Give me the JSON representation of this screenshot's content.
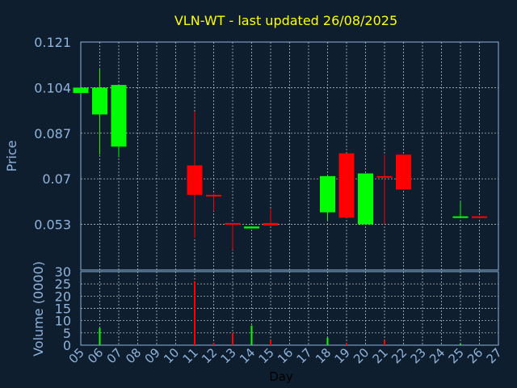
{
  "chart_data": {
    "type": "candlestick",
    "title": "VLN-WT - last updated 26/08/2025",
    "xlabel": "Day",
    "ylabel": "Price",
    "volume_label": "Volume (0000)",
    "x_ticks": [
      "05",
      "06",
      "07",
      "08",
      "09",
      "10",
      "11",
      "12",
      "13",
      "14",
      "15",
      "16",
      "17",
      "18",
      "19",
      "20",
      "21",
      "22",
      "23",
      "24",
      "25",
      "26",
      "27"
    ],
    "price_ticks": [
      "0.121",
      "0.104",
      "0.087",
      "0.07",
      "0.053"
    ],
    "price_range": [
      0.036,
      0.121
    ],
    "volume_ticks": [
      "30",
      "25",
      "20",
      "15",
      "10",
      "5",
      "0"
    ],
    "volume_range": [
      0,
      30
    ],
    "grid": true,
    "colors": {
      "background": "#0f1e2e",
      "up": "#00ff00",
      "down": "#ff0000",
      "title": "#ffff00",
      "axis_text": "#8fb4dc",
      "frame": "#8fb4dc",
      "grid": "#d0d0d0"
    },
    "candles": [
      {
        "day": "05",
        "open": 0.102,
        "close": 0.104,
        "high": 0.104,
        "low": 0.102
      },
      {
        "day": "06",
        "open": 0.094,
        "close": 0.104,
        "high": 0.111,
        "low": 0.079
      },
      {
        "day": "07",
        "open": 0.082,
        "close": 0.105,
        "high": 0.105,
        "low": 0.078
      },
      {
        "day": "11",
        "open": 0.075,
        "close": 0.064,
        "high": 0.095,
        "low": 0.048
      },
      {
        "day": "12",
        "open": 0.064,
        "close": 0.0635,
        "high": 0.0645,
        "low": 0.058
      },
      {
        "day": "13",
        "open": 0.0535,
        "close": 0.053,
        "high": 0.0535,
        "low": 0.0435
      },
      {
        "day": "14",
        "open": 0.0515,
        "close": 0.0522,
        "high": 0.0522,
        "low": 0.0515
      },
      {
        "day": "15",
        "open": 0.0535,
        "close": 0.0526,
        "high": 0.059,
        "low": 0.0526
      },
      {
        "day": "18",
        "open": 0.0575,
        "close": 0.071,
        "high": 0.071,
        "low": 0.0545
      },
      {
        "day": "19",
        "open": 0.0795,
        "close": 0.0555,
        "high": 0.0795,
        "low": 0.0555
      },
      {
        "day": "20",
        "open": 0.053,
        "close": 0.072,
        "high": 0.072,
        "low": 0.053
      },
      {
        "day": "21",
        "open": 0.071,
        "close": 0.0705,
        "high": 0.079,
        "low": 0.053
      },
      {
        "day": "22",
        "open": 0.079,
        "close": 0.066,
        "high": 0.079,
        "low": 0.066
      },
      {
        "day": "25",
        "open": 0.0555,
        "close": 0.056,
        "high": 0.0615,
        "low": 0.0555
      },
      {
        "day": "26",
        "open": 0.056,
        "close": 0.0555,
        "high": 0.056,
        "low": 0.0555
      }
    ],
    "volume": [
      {
        "day": "06",
        "value": 7
      },
      {
        "day": "11",
        "value": 26
      },
      {
        "day": "12",
        "value": 1
      },
      {
        "day": "13",
        "value": 5
      },
      {
        "day": "14",
        "value": 8
      },
      {
        "day": "15",
        "value": 2
      },
      {
        "day": "18",
        "value": 3
      },
      {
        "day": "19",
        "value": 1
      },
      {
        "day": "21",
        "value": 2
      },
      {
        "day": "25",
        "value": 0.5
      }
    ]
  }
}
